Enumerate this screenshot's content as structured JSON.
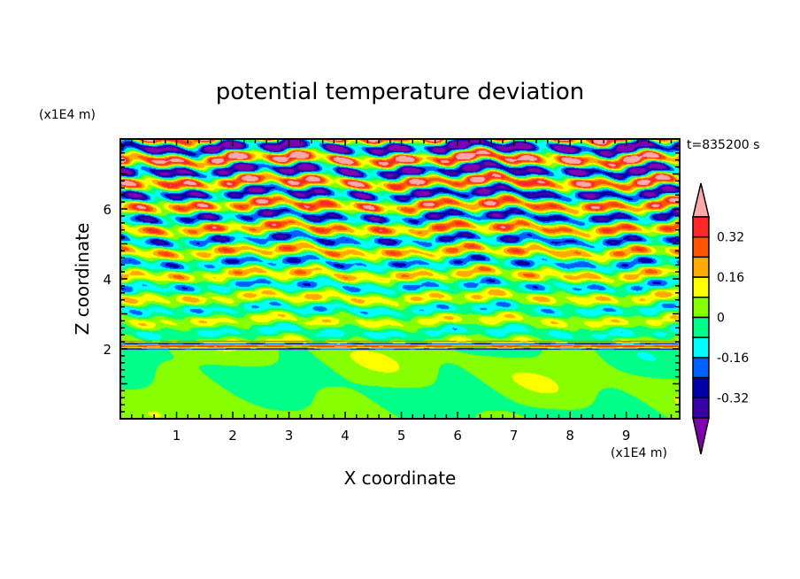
{
  "chart_data": {
    "type": "heatmap",
    "title": "potential temperature deviation",
    "xlabel": "X coordinate",
    "ylabel": "Z coordinate",
    "x_unit": "(x1E4 m)",
    "y_unit": "(x1E4 m)",
    "time_label": "t=835200 s",
    "xlim": [
      0,
      9.95
    ],
    "ylim": [
      0,
      8
    ],
    "x_ticks": [
      "1",
      "2",
      "3",
      "4",
      "5",
      "6",
      "7",
      "8",
      "9"
    ],
    "y_ticks": [
      "2",
      "4",
      "6"
    ],
    "grid": false,
    "legend": "right colorbar",
    "levels": [
      -0.4,
      -0.32,
      -0.24,
      -0.16,
      -0.08,
      0,
      0.08,
      0.16,
      0.24,
      0.32,
      0.4
    ],
    "colorbar_labels": [
      "0.32",
      "0.16",
      "0",
      "-0.16",
      "-0.32"
    ],
    "colors": [
      "#8000b0",
      "#3a00a8",
      "#0000a8",
      "#0060ff",
      "#00ffff",
      "#00ff88",
      "#88ff00",
      "#ffff00",
      "#ffaa00",
      "#ff5500",
      "#ff2828",
      "#ffa8a8"
    ],
    "field_description_values": {
      "below_z2_range": [
        -0.08,
        0.08
      ],
      "above_z2_amplitude_growth": [
        0.1,
        0.5
      ]
    }
  }
}
